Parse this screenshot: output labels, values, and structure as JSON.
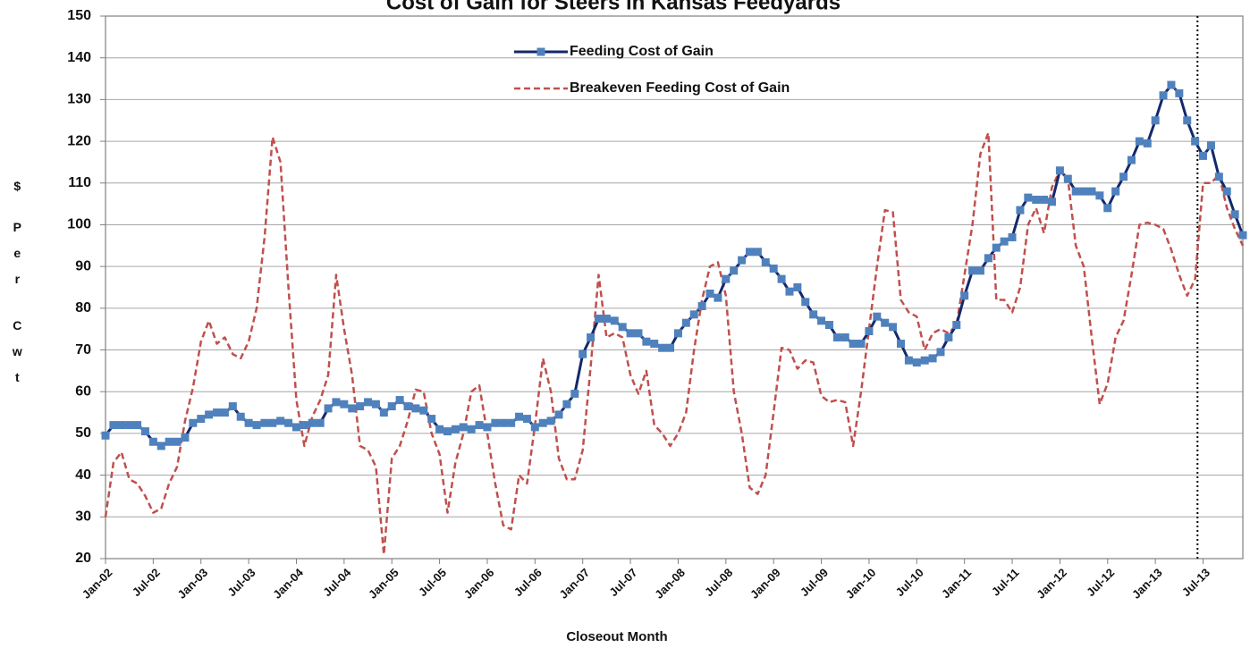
{
  "chart_data": {
    "type": "line",
    "title": "Cost of Gain for Steers in Kansas Feedyards",
    "xlabel": "Closeout Month",
    "ylabel_lines": [
      "$",
      "Per",
      "Cwt"
    ],
    "categories": [
      "Jan-02",
      null,
      null,
      null,
      null,
      null,
      "Jul-02",
      null,
      null,
      null,
      null,
      null,
      "Jan-03",
      null,
      null,
      null,
      null,
      null,
      "Jul-03",
      null,
      null,
      null,
      null,
      null,
      "Jan-04",
      null,
      null,
      null,
      null,
      null,
      "Jul-04",
      null,
      null,
      null,
      null,
      null,
      "Jan-05",
      null,
      null,
      null,
      null,
      null,
      "Jul-05",
      null,
      null,
      null,
      null,
      null,
      "Jan-06",
      null,
      null,
      null,
      null,
      null,
      "Jul-06",
      null,
      null,
      null,
      null,
      null,
      "Jan-07",
      null,
      null,
      null,
      null,
      null,
      "Jul-07",
      null,
      null,
      null,
      null,
      null,
      "Jan-08",
      null,
      null,
      null,
      null,
      null,
      "Jul-08",
      null,
      null,
      null,
      null,
      null,
      "Jan-09",
      null,
      null,
      null,
      null,
      null,
      "Jul-09",
      null,
      null,
      null,
      null,
      null,
      "Jan-10",
      null,
      null,
      null,
      null,
      null,
      "Jul-10",
      null,
      null,
      null,
      null,
      null,
      "Jan-11",
      null,
      null,
      null,
      null,
      null,
      "Jul-11",
      null,
      null,
      null,
      null,
      null,
      "Jan-12",
      null,
      null,
      null,
      null,
      null,
      "Jul-12",
      null,
      null,
      null,
      null,
      null,
      "Jan-13",
      null,
      null,
      null,
      null,
      null,
      "Jul-13",
      null,
      null,
      null,
      null,
      null
    ],
    "series": [
      {
        "name": "Feeding Cost of Gain",
        "color": "#4f81bd",
        "line_color": "#14286b",
        "marker": "square",
        "dashed": false,
        "values": [
          49.5,
          52,
          52,
          52,
          52,
          50.5,
          48,
          47,
          48,
          48,
          49,
          52.5,
          53.5,
          54.5,
          55,
          55,
          56.5,
          54,
          52.5,
          52,
          52.5,
          52.5,
          53,
          52.5,
          51.5,
          52,
          52.5,
          52.5,
          56,
          57.5,
          57,
          56,
          56.5,
          57.5,
          57,
          55,
          56.5,
          58,
          56.5,
          56,
          55.5,
          53.5,
          51,
          50.5,
          51,
          51.5,
          51,
          52,
          51.5,
          52.5,
          52.5,
          52.5,
          54,
          53.5,
          51.5,
          52.5,
          53,
          54.5,
          57,
          59.5,
          69,
          73,
          77.5,
          77.5,
          77,
          75.5,
          74,
          74,
          72,
          71.5,
          70.5,
          70.5,
          74,
          76.5,
          78.5,
          80.5,
          83.5,
          82.5,
          87,
          89,
          91.5,
          93.5,
          93.5,
          91,
          89.5,
          87,
          84,
          85,
          81.5,
          78.5,
          77,
          76,
          73,
          73,
          71.5,
          71.5,
          74.5,
          78,
          76.5,
          75.5,
          71.5,
          67.5,
          67,
          67.5,
          68,
          69.5,
          73,
          76,
          83,
          89,
          89,
          92,
          94.5,
          96,
          97,
          103.5,
          106.5,
          106,
          106,
          105.5,
          113,
          111,
          108,
          108,
          108,
          107,
          104,
          108,
          111.5,
          115.5,
          120,
          119.5,
          125,
          131,
          133.5,
          131.5,
          125,
          120,
          116.5,
          119,
          111.5,
          108,
          102.5,
          97.5
        ]
      },
      {
        "name": "Breakeven Feeding Cost of Gain",
        "color": "#c0504d",
        "marker": "none",
        "dashed": true,
        "values": [
          30,
          43,
          45.5,
          39,
          38,
          35,
          31,
          32,
          38,
          42,
          53,
          61,
          72,
          77,
          71.5,
          73,
          69,
          68,
          72,
          80,
          97,
          121,
          115,
          85,
          58,
          47,
          54,
          58,
          64,
          88,
          75,
          64,
          47,
          46,
          42,
          21,
          44,
          47,
          53,
          60.5,
          60,
          50,
          45,
          31,
          43,
          50,
          60,
          61.5,
          50,
          38,
          28,
          27,
          40,
          38,
          52,
          68,
          60,
          44,
          39,
          39,
          46,
          66,
          88,
          73,
          74,
          73,
          64,
          59.5,
          65,
          52,
          50,
          47,
          50,
          55,
          70,
          82,
          90,
          91,
          83,
          60,
          50,
          37,
          35.5,
          40,
          55,
          70.5,
          70,
          65.5,
          67.5,
          67,
          59,
          57.5,
          58,
          57.5,
          47,
          60,
          75,
          90,
          103.5,
          103,
          82,
          79,
          78,
          70,
          74,
          75,
          74,
          76,
          88,
          100,
          117,
          122,
          82,
          82,
          79,
          85,
          100,
          104,
          98,
          109,
          113,
          111,
          95,
          90,
          73,
          57,
          62,
          73,
          77,
          88,
          100,
          100.5,
          100,
          99,
          94,
          88,
          83,
          87,
          110,
          110,
          112,
          104,
          99,
          95
        ]
      }
    ],
    "ylim": [
      20,
      150
    ],
    "yticks": [
      20,
      30,
      40,
      50,
      60,
      70,
      80,
      90,
      100,
      110,
      120,
      130,
      140,
      150
    ],
    "grid": true,
    "legend": "top-center",
    "vline_index": 137.3
  }
}
